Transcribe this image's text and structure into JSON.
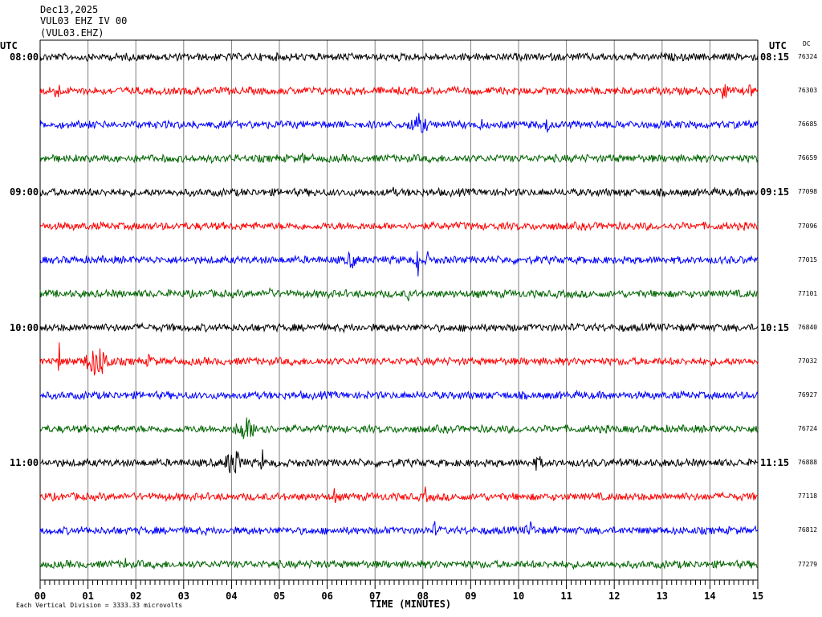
{
  "header": {
    "date": "Dec13,2025",
    "station": "VUL03 EHZ IV 00",
    "channel": "(VUL03.EHZ)"
  },
  "axis": {
    "left_tz": "UTC",
    "right_tz": "UTC",
    "dc_header": "DC",
    "xlabel": "TIME (MINUTES)",
    "xticks": [
      "00",
      "01",
      "02",
      "03",
      "04",
      "05",
      "06",
      "07",
      "08",
      "09",
      "10",
      "11",
      "12",
      "13",
      "14",
      "15"
    ],
    "footer": "Each Vertical Division = 3333.33 microvolts"
  },
  "chart_data": {
    "type": "line",
    "xlim": [
      0,
      15
    ],
    "x_unit": "minutes",
    "rows_per_hour": 4,
    "colors": [
      "#000000",
      "#ff0000",
      "#0000ff",
      "#006400"
    ],
    "left_hour_labels": [
      "08:00",
      "09:00",
      "10:00",
      "11:00"
    ],
    "right_hour_labels": [
      "08:15",
      "09:15",
      "10:15",
      "11:15"
    ],
    "row_dc_values": [
      "76324",
      "76303",
      "76685",
      "76659",
      "77098",
      "77096",
      "77015",
      "77101",
      "76840",
      "77032",
      "76927",
      "76724",
      "76888",
      "77118",
      "76812",
      "77279"
    ]
  }
}
